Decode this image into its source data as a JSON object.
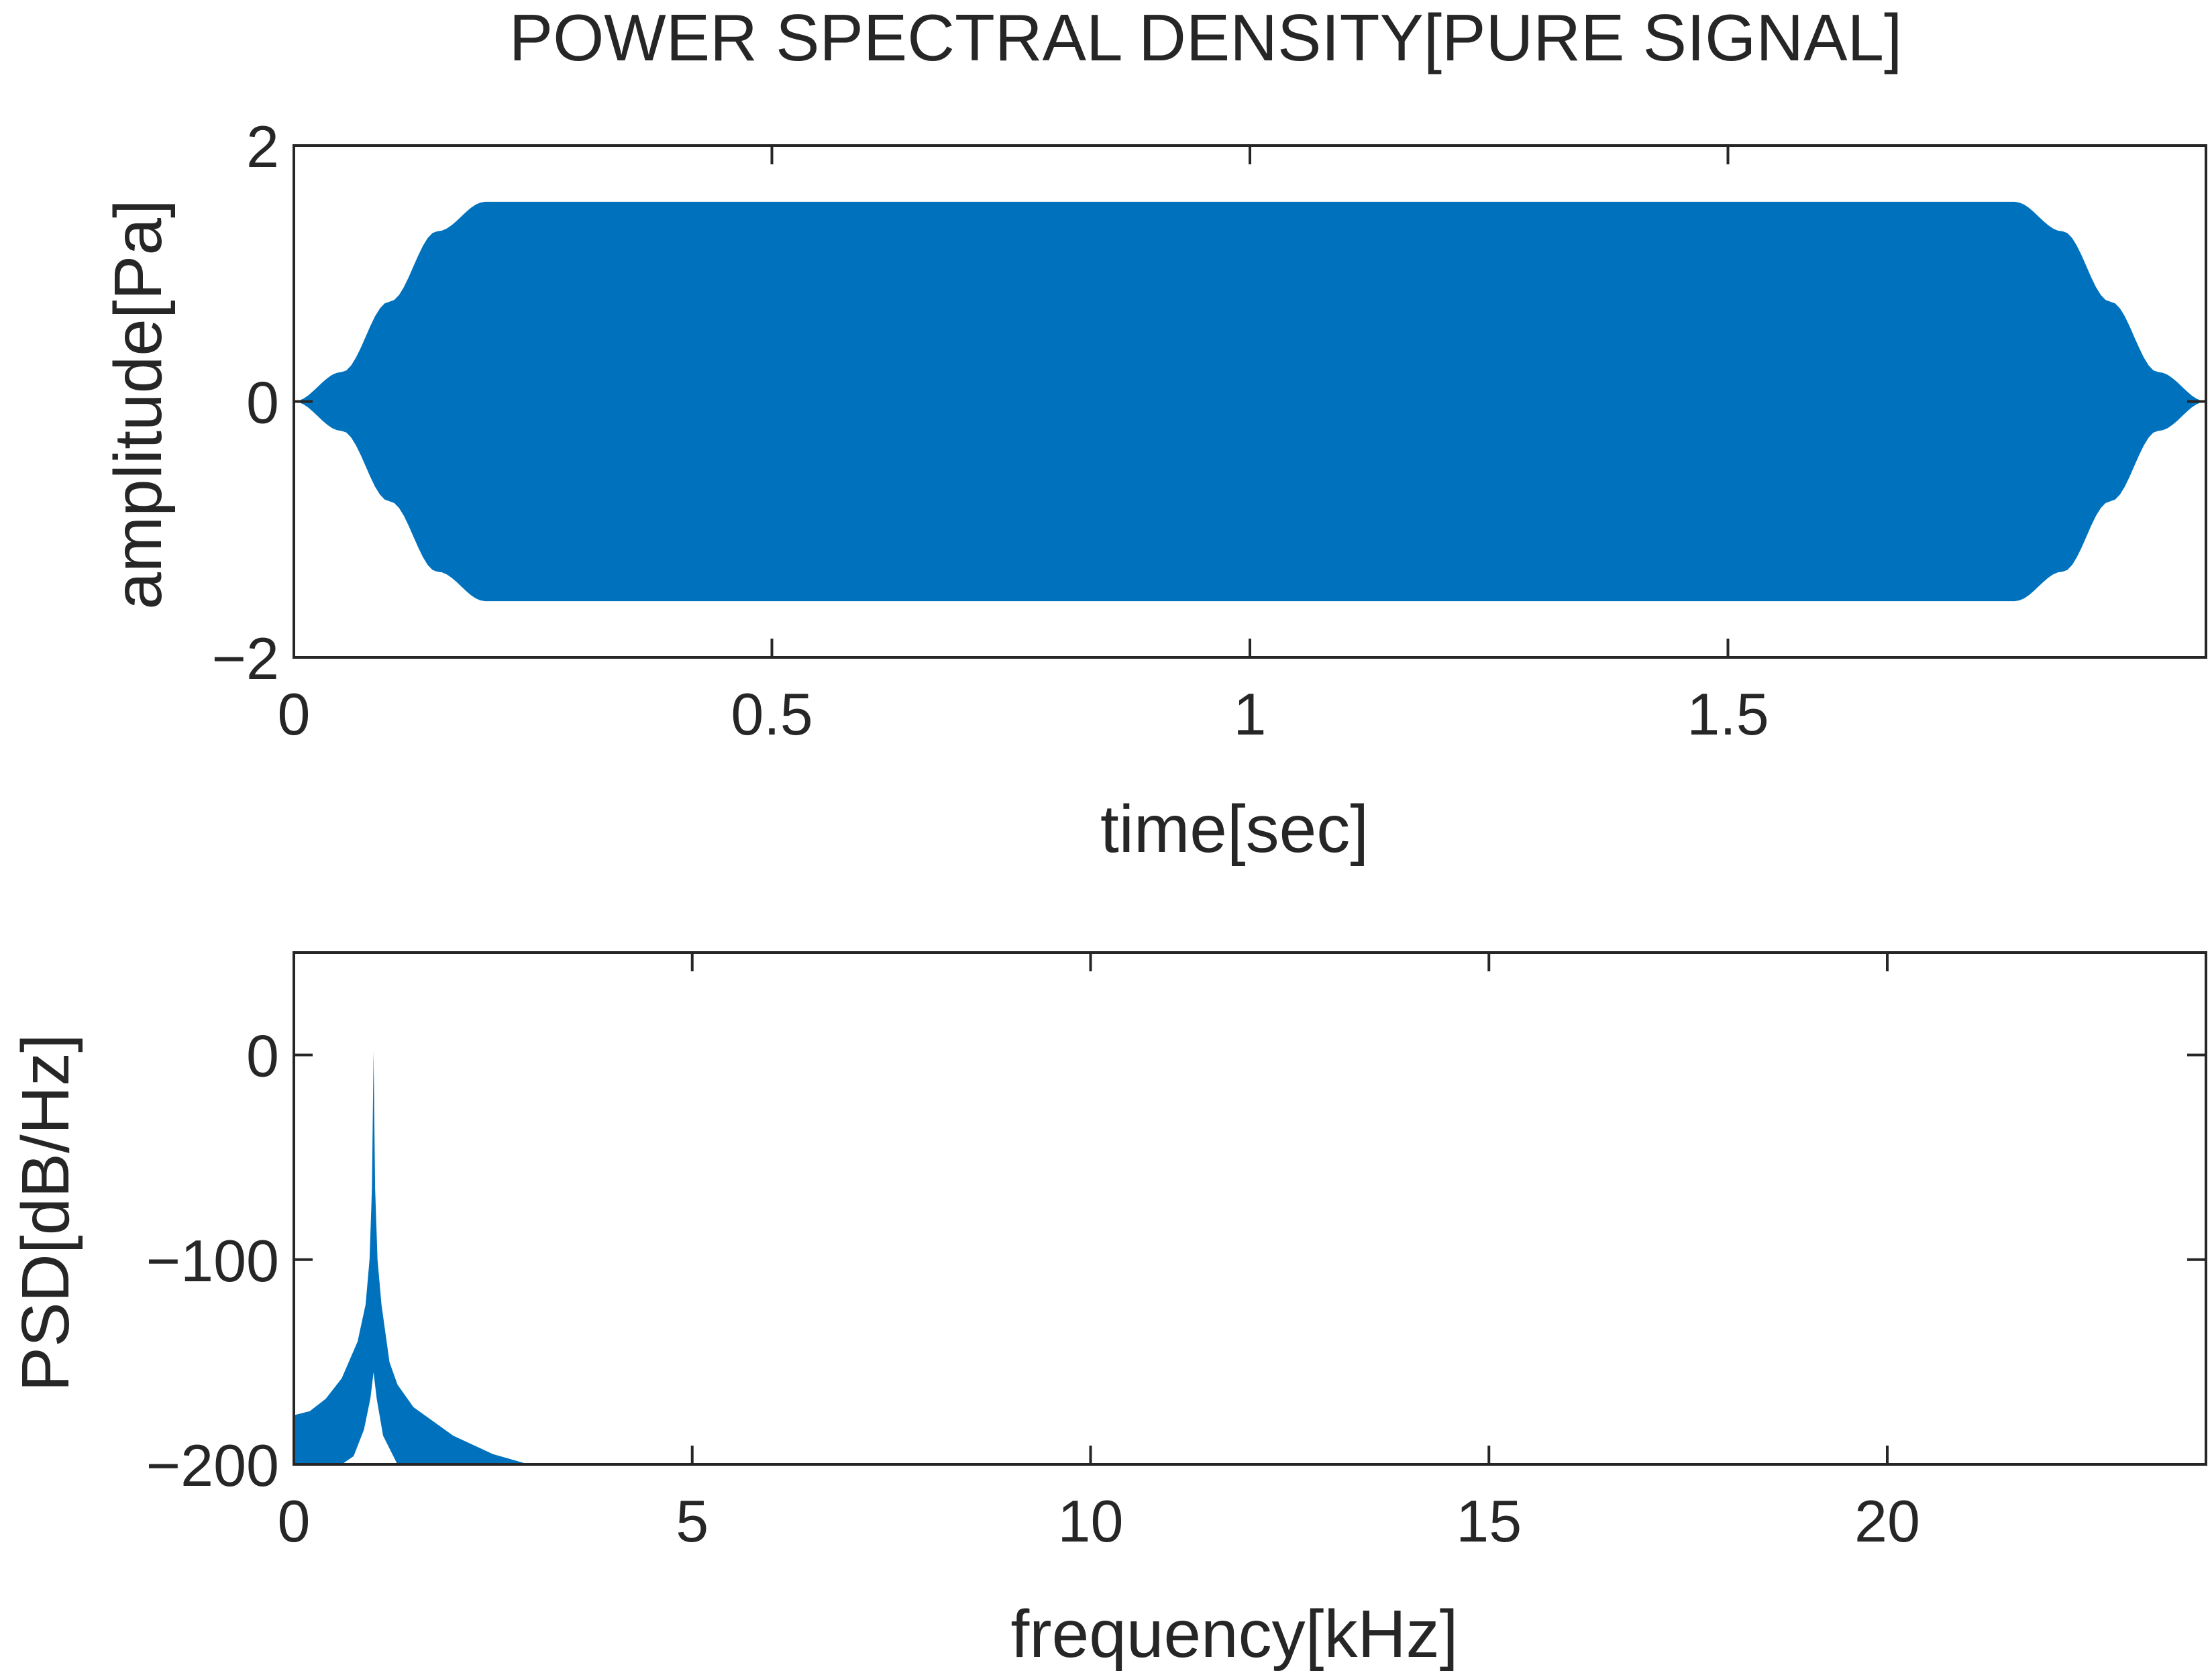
{
  "figure": {
    "title": "POWER SPECTRAL DENSITY[PURE SIGNAL]",
    "series_color": "#0072BD",
    "axis_color": "#262626"
  },
  "chart_data": [
    {
      "type": "area",
      "id": "waveform",
      "title": "",
      "xlabel": "time[sec]",
      "ylabel": "amplitude[Pa]",
      "xlim": [
        0,
        2
      ],
      "ylim": [
        -2,
        2
      ],
      "xticks": [
        0,
        0.5,
        1,
        1.5
      ],
      "xtick_labels": [
        "0",
        "0.5",
        "1",
        "1.5"
      ],
      "yticks": [
        -2,
        0,
        2
      ],
      "ytick_labels": [
        "−2",
        "0",
        "2"
      ],
      "grid": false,
      "series": [
        {
          "description_kind": "envelope",
          "x": [
            0,
            0.05,
            0.1,
            0.15,
            0.2,
            1.8,
            1.85,
            1.9,
            1.95,
            2.0
          ],
          "upper": [
            0,
            0.23,
            0.78,
            1.33,
            1.56,
            1.56,
            1.33,
            0.78,
            0.23,
            0
          ],
          "lower": [
            0,
            -0.23,
            -0.78,
            -1.33,
            -1.56,
            -1.56,
            -1.33,
            -0.78,
            -0.23,
            0
          ]
        }
      ]
    },
    {
      "type": "area",
      "id": "psd",
      "title": "",
      "xlabel": "frequency[kHz]",
      "ylabel": "PSD[dB/Hz]",
      "xlim": [
        0,
        24
      ],
      "ylim": [
        -200,
        50
      ],
      "xticks": [
        0,
        5,
        10,
        15,
        20
      ],
      "xtick_labels": [
        "0",
        "5",
        "10",
        "15",
        "20"
      ],
      "yticks": [
        -200,
        -100,
        0
      ],
      "ytick_labels": [
        "−200",
        "−100",
        "0"
      ],
      "grid": false,
      "series": [
        {
          "x": [
            0,
            0.2,
            0.4,
            0.6,
            0.8,
            0.9,
            0.95,
            0.98,
            1.0,
            1.02,
            1.05,
            1.1,
            1.2,
            1.3,
            1.5,
            2.0,
            2.5,
            2.95
          ],
          "y": [
            -176,
            -174,
            -168,
            -158,
            -140,
            -122,
            -100,
            -65,
            2,
            -65,
            -100,
            -122,
            -150,
            -161,
            -172,
            -186,
            -195,
            -200
          ]
        },
        {
          "x": [
            0.6,
            0.75,
            0.88,
            0.96,
            1.0,
            1.04,
            1.12,
            1.3
          ],
          "y": [
            -200,
            -196,
            -183,
            -168,
            -155,
            -168,
            -186,
            -200
          ]
        }
      ]
    }
  ]
}
